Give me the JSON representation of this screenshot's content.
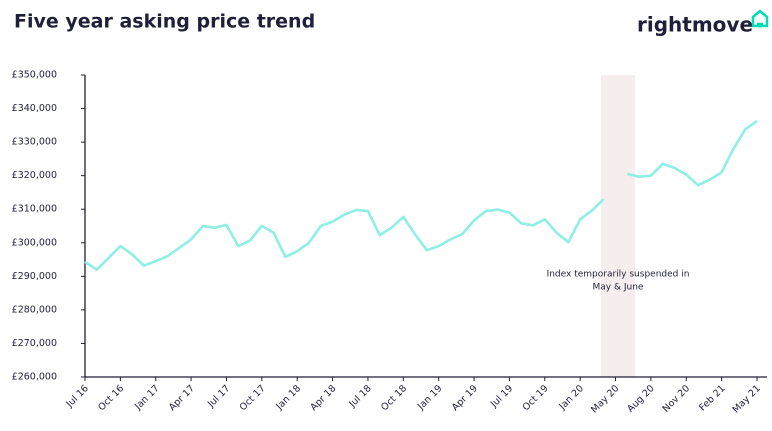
{
  "chart_data": {
    "type": "line",
    "title": "Five year asking price trend",
    "brand": "rightmove",
    "annotation": [
      "Index temporarily suspended in",
      "May & June"
    ],
    "categories": [
      "Jul 16",
      null,
      null,
      "Oct 16",
      null,
      null,
      "Jan 17",
      null,
      null,
      "Apr 17",
      null,
      null,
      "Jul 17",
      null,
      null,
      "Oct 17",
      null,
      null,
      "Jan 18",
      null,
      null,
      "Apr 18",
      null,
      null,
      "Jul 18",
      null,
      null,
      "Oct 18",
      null,
      null,
      "Jan 19",
      null,
      null,
      "Apr 19",
      null,
      null,
      "Jul 19",
      null,
      null,
      "Oct 19",
      null,
      null,
      "Jan 20",
      null,
      null,
      "May 20",
      null,
      null,
      "Aug 20",
      null,
      null,
      "Nov 20",
      null,
      null,
      "Feb 21",
      null,
      null,
      "May 21"
    ],
    "series": [
      {
        "name": "Asking price",
        "color": "#8eefe2",
        "values": [
          294300,
          292000,
          295500,
          299000,
          296500,
          293200,
          294500,
          296000,
          298500,
          301000,
          305000,
          304500,
          305300,
          299000,
          300700,
          305000,
          303000,
          295800,
          297500,
          300000,
          305000,
          306300,
          308400,
          309800,
          309500,
          302300,
          304500,
          307700,
          302500,
          297800,
          299000,
          301000,
          302600,
          306700,
          309400,
          309900,
          309000,
          305800,
          305200,
          307000,
          303000,
          300200,
          307000,
          309600,
          313000,
          null,
          320500,
          319700,
          320000,
          323500,
          322300,
          320300,
          317200,
          318800,
          321000,
          328000,
          333800,
          336300
        ]
      }
    ],
    "ylim": [
      260000,
      350000
    ],
    "yticks": [
      {
        "value": 260000,
        "label": "£260,000"
      },
      {
        "value": 270000,
        "label": "£270,000"
      },
      {
        "value": 280000,
        "label": "£280,000"
      },
      {
        "value": 290000,
        "label": "£290,000"
      },
      {
        "value": 300000,
        "label": "£300,000"
      },
      {
        "value": 310000,
        "label": "£310,000"
      },
      {
        "value": 320000,
        "label": "£320,000"
      },
      {
        "value": 330000,
        "label": "£330,000"
      },
      {
        "value": 340000,
        "label": "£340,000"
      },
      {
        "value": 350000,
        "label": "£350,000"
      }
    ],
    "grid": false
  }
}
